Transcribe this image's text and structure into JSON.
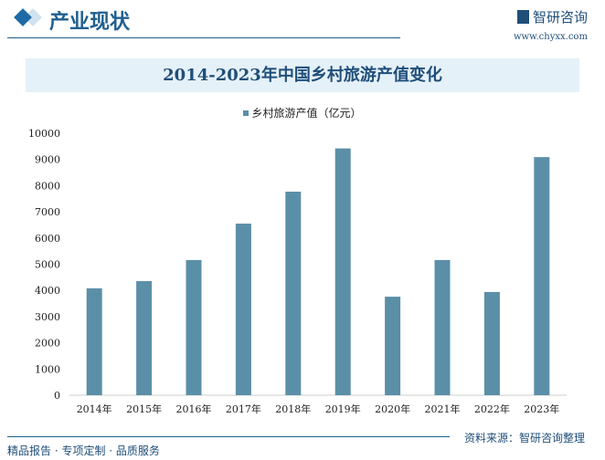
{
  "header": {
    "section_title": "产业现状",
    "logo_text": "智研咨询",
    "url": "www.chyxx.com"
  },
  "footer": {
    "source": "资料来源：智研咨询整理",
    "slogan": "精品报告 · 专项定制 · 品质服务"
  },
  "colors": {
    "bar": "#5b8fa8",
    "accent": "#1f5f8f"
  },
  "chart_data": {
    "type": "bar",
    "title": "2014-2023年中国乡村旅游产值变化",
    "categories": [
      "2014年",
      "2015年",
      "2016年",
      "2017年",
      "2018年",
      "2019年",
      "2020年",
      "2021年",
      "2022年",
      "2023年"
    ],
    "series": [
      {
        "name": "乡村旅游产值（亿元）",
        "values": [
          4080,
          4355,
          5160,
          6550,
          7770,
          9420,
          3760,
          5160,
          3940,
          9090
        ]
      }
    ],
    "yticks": [
      0,
      1000,
      2000,
      3000,
      4000,
      5000,
      6000,
      7000,
      8000,
      9000,
      10000
    ],
    "ylim": [
      0,
      10000
    ],
    "legend": "top",
    "grid": false
  }
}
